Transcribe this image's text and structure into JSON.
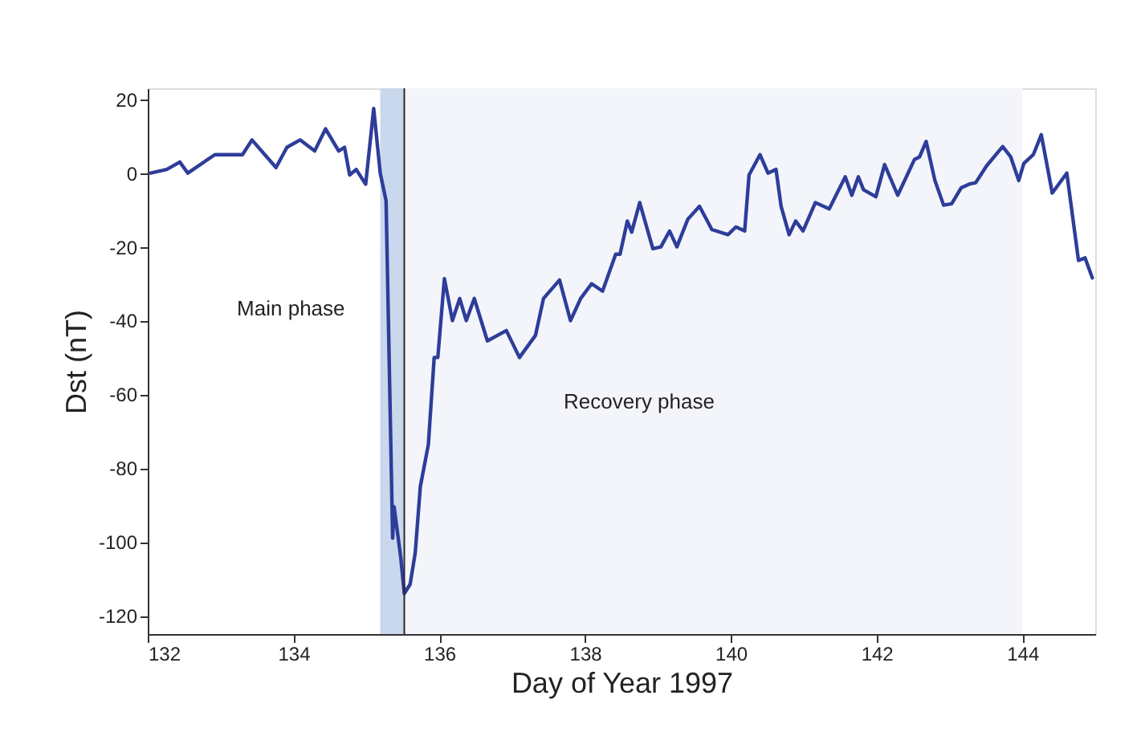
{
  "chart_data": {
    "type": "line",
    "xlabel": "Day of Year 1997",
    "ylabel": "Dst (nT)",
    "xlim": [
      132,
      145
    ],
    "ylim": [
      -125,
      23
    ],
    "xticks": [
      132,
      134,
      136,
      138,
      140,
      142,
      144
    ],
    "yticks": [
      -120,
      -100,
      -80,
      -60,
      -40,
      -20,
      0,
      20
    ],
    "grid": false,
    "marker": "none",
    "line_style": "solid",
    "x": [
      132.04,
      132.26,
      132.44,
      132.55,
      132.92,
      133.3,
      133.43,
      133.76,
      133.91,
      134.09,
      134.29,
      134.44,
      134.62,
      134.7,
      134.77,
      134.86,
      134.99,
      135.1,
      135.19,
      135.27,
      135.36,
      135.38,
      135.47,
      135.52,
      135.6,
      135.67,
      135.74,
      135.85,
      135.93,
      135.98,
      136.07,
      136.18,
      136.28,
      136.37,
      136.48,
      136.66,
      136.92,
      137.1,
      137.32,
      137.43,
      137.65,
      137.8,
      137.94,
      138.09,
      138.24,
      138.42,
      138.48,
      138.58,
      138.64,
      138.75,
      138.93,
      139.04,
      139.16,
      139.26,
      139.41,
      139.57,
      139.74,
      139.96,
      140.07,
      140.19,
      140.25,
      140.4,
      140.51,
      140.62,
      140.69,
      140.8,
      140.89,
      140.99,
      141.16,
      141.35,
      141.57,
      141.66,
      141.75,
      141.82,
      141.99,
      142.11,
      142.29,
      142.52,
      142.59,
      142.68,
      142.8,
      142.92,
      143.03,
      143.16,
      143.27,
      143.36,
      143.51,
      143.73,
      143.84,
      143.95,
      144.02,
      144.15,
      144.26,
      144.41,
      144.61,
      144.77,
      144.86,
      144.96
    ],
    "series": [
      {
        "color": "#2e3d9a",
        "values": [
          0,
          1,
          3,
          0,
          5,
          5,
          9,
          1.5,
          7,
          9,
          6,
          12,
          6,
          7,
          -0.5,
          1,
          -3,
          17.5,
          0,
          -7.5,
          -99,
          -90.5,
          -104,
          -114,
          -111.5,
          -103,
          -85,
          -73.6,
          -50,
          -50,
          -28.6,
          -40,
          -34,
          -40,
          -34,
          -45.5,
          -42.7,
          -50,
          -44,
          -34,
          -29,
          -40,
          -34,
          -30,
          -32,
          -22,
          -22,
          -13,
          -16,
          -8,
          -20.5,
          -20,
          -15.7,
          -20,
          -12.5,
          -9,
          -15.3,
          -16.7,
          -14.6,
          -15.7,
          -0.5,
          5,
          0,
          1,
          -9,
          -16.7,
          -13,
          -15.7,
          -8,
          -9.7,
          -1,
          -6,
          -1,
          -4.5,
          -6.4,
          2.3,
          -6,
          3.7,
          4.4,
          8.6,
          -2,
          -8.7,
          -8.3,
          -4,
          -3,
          -2.6,
          2,
          7.2,
          4.4,
          -2,
          2.6,
          5,
          10.4,
          -5.4,
          0,
          -23.7,
          -23,
          -28.4
        ]
      }
    ],
    "bands": [
      {
        "axis": "x",
        "from": 135.19,
        "to": 135.52,
        "label": "Main phase",
        "color": "#c9d8ec"
      },
      {
        "axis": "x",
        "from": 135.52,
        "to": 144.0,
        "label": "Recovery phase",
        "color": "#f3f5fa"
      }
    ],
    "ref_lines": [
      {
        "axis": "x",
        "value": 135.52,
        "color": "#2b2b2b"
      }
    ]
  }
}
